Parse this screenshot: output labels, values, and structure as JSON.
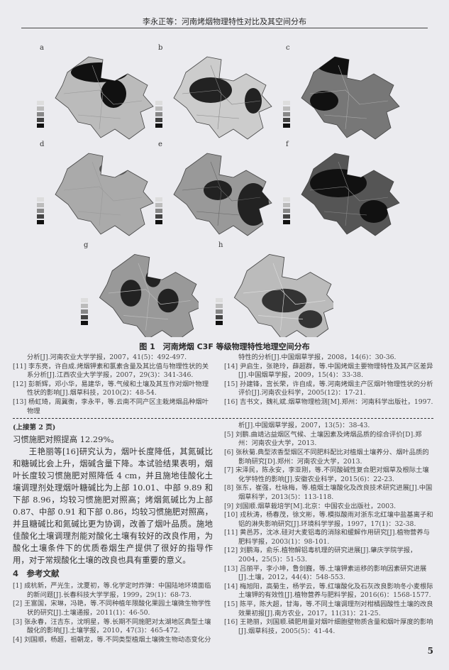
{
  "header": {
    "running_title": "李永正等：河南烤烟物理特性对比及其空间分布"
  },
  "figure": {
    "panels": [
      "a",
      "b",
      "c",
      "d",
      "e",
      "f",
      "g",
      "h"
    ],
    "caption": "图 1　河南烤烟 C3F 等级物理特性地理空间分布"
  },
  "refs_top_left": [
    {
      "text": "分析[J].河南农业大学学报，2007，41(5)：492-497.",
      "cont": true
    },
    {
      "text": "[11] 李东亮，许自成.烤烟钾素和氯素含量及其比值与物理性状的关系分析[J].江西农业大学学报，2007，29(3)：341-346."
    },
    {
      "text": "[12] 彭新辉，邓小华，易建华，等.气候和土壤及其互作对烟叶物理性状的影响[J].烟草科技，2010(2)：48-54."
    },
    {
      "text": "[13] 杨虹琦，周冀衡，李永平，等.云南不同产区主栽烤烟品种烟叶物理"
    }
  ],
  "refs_top_right": [
    {
      "text": "特性的分析[J].中国烟草学报，2008，14(6)：30-36.",
      "cont": true
    },
    {
      "text": "[14] 尹启生，张艳玲，薛超群，等.中国烤烟主要物理特性及其产区差异[J].中国烟草学报，2009，15(4)：33-38."
    },
    {
      "text": "[15] 孙建锋，宫长荣，许自成，等.河南烤烟主产区烟叶物理性状的分析评价[J].河南农业科学，2005(12)：17-21."
    },
    {
      "text": "[16] 吉书文，魏礼斌.烟草物理检测[M].郑州：河南科学出版社，1997."
    }
  ],
  "continued_note": "(上接第 2 页)",
  "body": {
    "line1": "习惯施肥对照提高 12.29%。",
    "paragraph": "王艳丽等[16]研究认为，烟叶长度降低，其氮碱比和糖碱比会上升，烟碱含量下降。本试验结果表明，烟叶长度较习惯施肥对照降低 4 cm，并且施地佳酸化土壤调理剂处理烟叶糖碱比为上部 10.01、中部 9.89 和下部 8.96，均较习惯施肥对照高；烤烟氮碱比为上部 0.87、中部 0.91 和下部 0.86，均较习惯施肥对照高，并且糖碱比和氮碱比更为协调，改善了烟叶品质。施地佳酸化土壤调理剂能对酸化土壤有较好的改良作用，为酸化土壤条件下的优质卷烟生产提供了很好的指导作用，对于常规酸化土壤的改良也具有重要的意义。",
    "section_title": "4　参考文献"
  },
  "refs_left": [
    "[1] 成杭新，严光生，沈夏初，等.化学定时炸弹：中国陆地环境面临的新问题[J].长春科技大学学报，1999，29(1)：68-73.",
    "[2] 王富国，宋琳，冯艳，等.不同种植年限酸化果园土壤微生物学性状的研究[J].土壤通报，2011(1)：46-50.",
    "[3] 张永春，汪吉东，沈明星，等.长期不同施肥对太湖地区典型土壤酸化的影响[J].土壤学报，2010，47(3)：465-472.",
    "[4] 刘国顺，杨超，祖朝龙，等.不同类型植烟土壤微生物动态变化分"
  ],
  "refs_right": [
    {
      "text": "析[J].中国烟草学报，2007，13(5)：38-43.",
      "cont": true
    },
    {
      "text": "[5] 刘鹏.曲靖沾益烟区气候、土壤因素及烤烟品质的综合评价[D].郑州：河南农业大学，2013."
    },
    {
      "text": "[6] 张秋菊.典型浓香型烟区不同肥料配比对植烟土壤养分、烟叶品质的影响研究[D].郑州：河南农业大学，2013."
    },
    {
      "text": "[7] 宋泽民，陈永安，李亚刚，等.不同酸碱性复合肥对烟草及根际土壤化学特性的影响[J].安徽农业科学，2015(6)：22-23."
    },
    {
      "text": "[8] 张东，崔强，杜咏梅，等.植烟土壤酸化及改良技术研究进展[J].中国烟草科学，2013(5)：113-118."
    },
    {
      "text": "[9] 刘国顺.烟草栽培学[M].北京：中国农业出版社，2003."
    },
    {
      "text": "[10] 戎秋涛，杨春茂，徐文彬，等.模拟酸雨对浙东北红壤中盐基离子和铝的淋失影响研究[J].环境科学学报，1997，17(1)：32-38."
    },
    {
      "text": "[11] 黄邑苏，沈冰.硅对大麦铝毒的消除和缓解作用研究[J].植物营养与肥料学报，2003(1)：98-101."
    },
    {
      "text": "[12] 刘鹏海，俞乐.植物解铝毒机理的研究进展[J].肇庆学院学报，2004，25(5)：51-53."
    },
    {
      "text": "[13] 吕丽平，李小坤，鲁剑巍，等.土壤钾素运移的影响因素研究进展[J].土壤，2012，44(4)：548-553."
    },
    {
      "text": "[14] 梅旭阳，高菊生，杨学云，等.红壤酸化及石灰改良影响冬小麦根际土壤钾的有效性[J].植物营养与肥料学报，2016(6)：1568-1577."
    },
    {
      "text": "[15] 陈平，陈大超，甘海，等.不同土壤调理剂对柑橘园酸性土壤的改良效果初报[J].南方农业，2017，11(31)：21-25."
    },
    {
      "text": "[16] 王艳丽，刘国顺.磷肥用量对烟叶细胞壁物质含量和烟叶厚度的影响[J].烟草科技，2005(5)：41-44."
    }
  ],
  "page_number": "5"
}
